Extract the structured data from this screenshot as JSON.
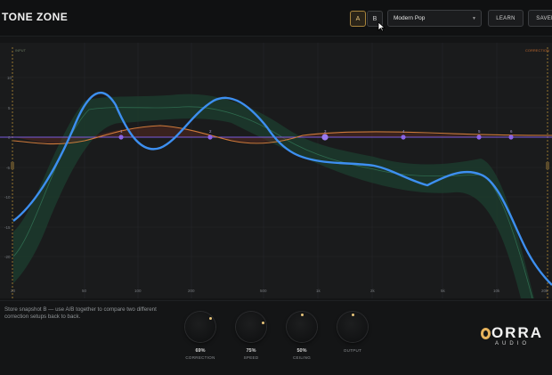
{
  "header": {
    "title": "TONE ZONE",
    "snapshot_a_label": "A",
    "snapshot_b_label": "B",
    "preset_value": "Modern Pop",
    "learn_label": "LEARN",
    "saved_label": "SAVED"
  },
  "plot": {
    "input_label": "INPUT",
    "correction_label": "CORRECTION",
    "y_ticks": [
      "10",
      "5",
      "0",
      "-5",
      "-10",
      "-15",
      "-20"
    ],
    "x_ticks": [
      "20",
      "50",
      "100",
      "200",
      "500",
      "1k",
      "2k",
      "5k",
      "10k",
      "20k"
    ],
    "band_labels": [
      "1",
      "2",
      "3",
      "4",
      "5",
      "6"
    ],
    "colors": {
      "input_curve": "#3d8ff0",
      "correction_curve": "#d07a3a",
      "zero_line": "#7a5be0",
      "target_band": "#1f4a38",
      "band_marker": "#8a64e8"
    }
  },
  "footer": {
    "hint": "Store snapshot B — use A/B together to compare two different correction setups back to back.",
    "knobs": [
      {
        "label": "CORRECTION",
        "value": "69%"
      },
      {
        "label": "SPEED",
        "value": "75%"
      },
      {
        "label": "CEILING",
        "value": "50%"
      },
      {
        "label": "OUTPUT",
        "value": ""
      }
    ],
    "logo_text": "ORRA",
    "logo_sub": "AUDIO"
  }
}
